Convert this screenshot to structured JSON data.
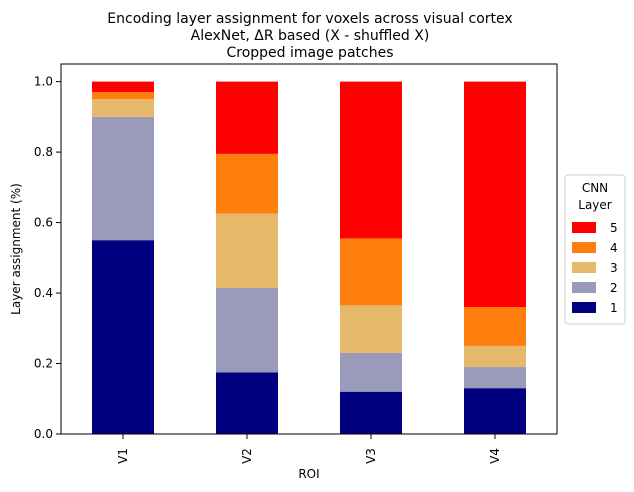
{
  "chart_data": {
    "type": "bar",
    "stacked": true,
    "title": [
      "Encoding layer assignment for voxels across visual cortex",
      "AlexNet, ΔR based (X - shuffled X)",
      "Cropped image patches"
    ],
    "xlabel": "ROI",
    "ylabel": "Layer assignment (%)",
    "ylim": [
      0,
      1.05
    ],
    "yticks": [
      "0.0",
      "0.2",
      "0.4",
      "0.6",
      "0.8",
      "1.0"
    ],
    "categories": [
      "V1",
      "V2",
      "V3",
      "V4"
    ],
    "series": [
      {
        "name": "1",
        "color": "#000080",
        "values": [
          0.55,
          0.175,
          0.12,
          0.13
        ]
      },
      {
        "name": "2",
        "color": "#9a9aba",
        "values": [
          0.35,
          0.24,
          0.11,
          0.06
        ]
      },
      {
        "name": "3",
        "color": "#e6b96a",
        "values": [
          0.05,
          0.21,
          0.135,
          0.06
        ]
      },
      {
        "name": "4",
        "color": "#ff7f0e",
        "values": [
          0.02,
          0.17,
          0.19,
          0.11
        ]
      },
      {
        "name": "5",
        "color": "#ff0000",
        "values": [
          0.03,
          0.205,
          0.445,
          0.64
        ]
      }
    ],
    "legend": {
      "title": [
        "CNN",
        "Layer"
      ],
      "placement": "center-right"
    },
    "grid": false
  }
}
